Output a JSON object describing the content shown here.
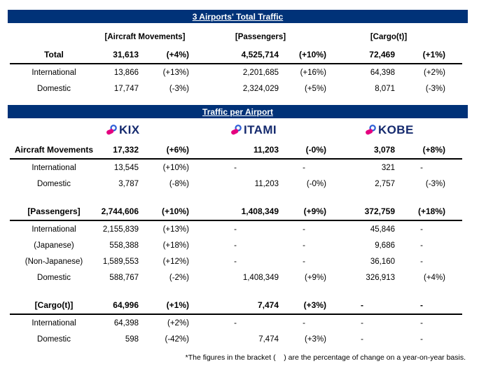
{
  "colors": {
    "header_bar": "#003278",
    "logo_text_navy": "#152A6E",
    "logo_blue": "#2E5FD6",
    "logo_magenta": "#E4007F"
  },
  "table1": {
    "title": "3 Airports' Total Traffic",
    "col_groups": [
      "[Aircraft Movements]",
      "[Passengers]",
      "[Cargo(t)]"
    ],
    "rows": [
      {
        "label": "Total",
        "bold": true,
        "cells": [
          "31,613",
          "(+4%)",
          "4,525,714",
          "(+10%)",
          "72,469",
          "(+1%)"
        ]
      },
      {
        "label": "International",
        "bold": false,
        "cells": [
          "13,866",
          "(+13%)",
          "2,201,685",
          "(+16%)",
          "64,398",
          "(+2%)"
        ]
      },
      {
        "label": "Domestic",
        "bold": false,
        "cells": [
          "17,747",
          "(-3%)",
          "2,324,029",
          "(+5%)",
          "8,071",
          "(-3%)"
        ]
      }
    ]
  },
  "table2": {
    "title": "Traffic per Airport",
    "airports": [
      "KIX",
      "ITAMI",
      "KOBE"
    ],
    "sections": [
      {
        "header": {
          "label": "Aircraft Movements",
          "cells": [
            "17,332",
            "(+6%)",
            "11,203",
            "(-0%)",
            "3,078",
            "(+8%)"
          ]
        },
        "rows": [
          {
            "label": "International",
            "cells": [
              "13,545",
              "(+10%)",
              "-",
              "-",
              "321",
              "-"
            ]
          },
          {
            "label": "Domestic",
            "cells": [
              "3,787",
              "(-8%)",
              "11,203",
              "(-0%)",
              "2,757",
              "(-3%)"
            ]
          }
        ]
      },
      {
        "header": {
          "label": "[Passengers]",
          "cells": [
            "2,744,606",
            "(+10%)",
            "1,408,349",
            "(+9%)",
            "372,759",
            "(+18%)"
          ]
        },
        "rows": [
          {
            "label": "International",
            "cells": [
              "2,155,839",
              "(+13%)",
              "-",
              "-",
              "45,846",
              "-"
            ]
          },
          {
            "label": "(Japanese)",
            "cells": [
              "558,388",
              "(+18%)",
              "-",
              "-",
              "9,686",
              "-"
            ]
          },
          {
            "label": "(Non-Japanese)",
            "cells": [
              "1,589,553",
              "(+12%)",
              "-",
              "-",
              "36,160",
              "-"
            ]
          },
          {
            "label": "Domestic",
            "cells": [
              "588,767",
              "(-2%)",
              "1,408,349",
              "(+9%)",
              "326,913",
              "(+4%)"
            ]
          }
        ]
      },
      {
        "header": {
          "label": "[Cargo(t)]",
          "cells": [
            "64,996",
            "(+1%)",
            "7,474",
            "(+3%)",
            "-",
            "-"
          ]
        },
        "rows": [
          {
            "label": "International",
            "cells": [
              "64,398",
              "(+2%)",
              "-",
              "-",
              "-",
              "-"
            ]
          },
          {
            "label": "Domestic",
            "cells": [
              "598",
              "(-42%)",
              "7,474",
              "(+3%)",
              "-",
              "-"
            ]
          }
        ]
      }
    ]
  },
  "footnote": "*The figures in the bracket (    ) are the percentage of change on a year-on-year basis."
}
